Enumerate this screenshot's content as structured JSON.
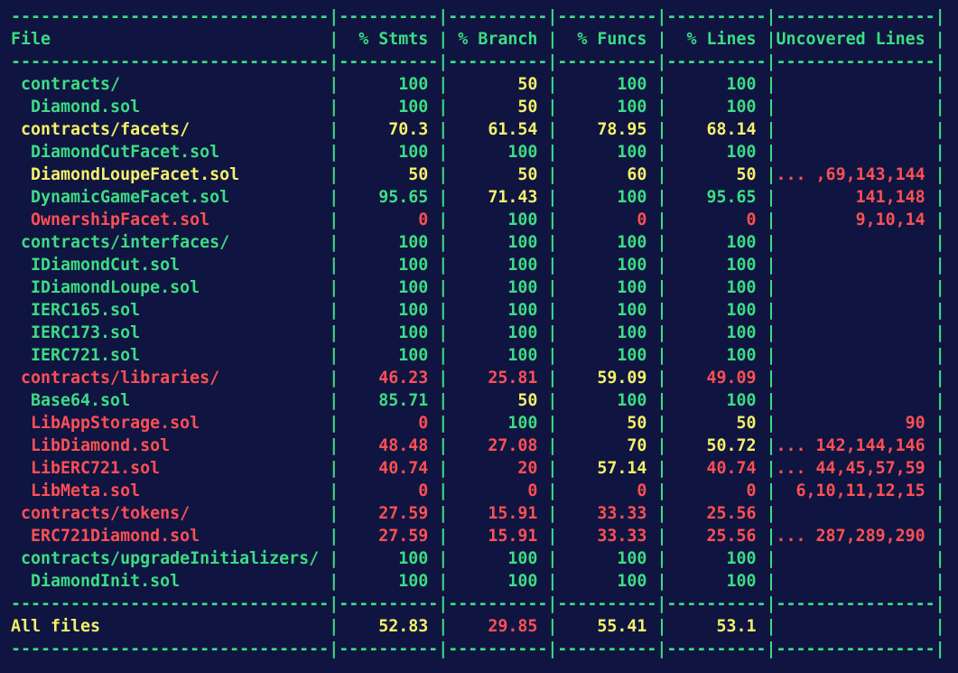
{
  "table": {
    "separator_line": "--------------------------------|----------|----------|----------|----------|----------------|",
    "header": {
      "file": "File",
      "stmts": "% Stmts",
      "branch": "% Branch",
      "funcs": "% Funcs",
      "lines": "% Lines",
      "uncovered": "Uncovered Lines"
    },
    "rows": [
      {
        "file": "contracts/",
        "indent": 1,
        "stmts": "100",
        "branch": "50",
        "funcs": "100",
        "lines": "100",
        "uncovered": "",
        "color": {
          "file": "green",
          "stmts": "green",
          "branch": "yellow",
          "funcs": "green",
          "lines": "green",
          "uncovered": "red"
        }
      },
      {
        "file": "Diamond.sol",
        "indent": 2,
        "stmts": "100",
        "branch": "50",
        "funcs": "100",
        "lines": "100",
        "uncovered": "",
        "color": {
          "file": "green",
          "stmts": "green",
          "branch": "yellow",
          "funcs": "green",
          "lines": "green",
          "uncovered": "red"
        }
      },
      {
        "file": "contracts/facets/",
        "indent": 1,
        "stmts": "70.3",
        "branch": "61.54",
        "funcs": "78.95",
        "lines": "68.14",
        "uncovered": "",
        "color": {
          "file": "yellow",
          "stmts": "yellow",
          "branch": "yellow",
          "funcs": "yellow",
          "lines": "yellow",
          "uncovered": "red"
        }
      },
      {
        "file": "DiamondCutFacet.sol",
        "indent": 2,
        "stmts": "100",
        "branch": "100",
        "funcs": "100",
        "lines": "100",
        "uncovered": "",
        "color": {
          "file": "green",
          "stmts": "green",
          "branch": "green",
          "funcs": "green",
          "lines": "green",
          "uncovered": "red"
        }
      },
      {
        "file": "DiamondLoupeFacet.sol",
        "indent": 2,
        "stmts": "50",
        "branch": "50",
        "funcs": "60",
        "lines": "50",
        "uncovered": "... ,69,143,144",
        "color": {
          "file": "yellow",
          "stmts": "yellow",
          "branch": "yellow",
          "funcs": "yellow",
          "lines": "yellow",
          "uncovered": "red"
        }
      },
      {
        "file": "DynamicGameFacet.sol",
        "indent": 2,
        "stmts": "95.65",
        "branch": "71.43",
        "funcs": "100",
        "lines": "95.65",
        "uncovered": "141,148",
        "color": {
          "file": "green",
          "stmts": "green",
          "branch": "yellow",
          "funcs": "green",
          "lines": "green",
          "uncovered": "red"
        }
      },
      {
        "file": "OwnershipFacet.sol",
        "indent": 2,
        "stmts": "0",
        "branch": "100",
        "funcs": "0",
        "lines": "0",
        "uncovered": "9,10,14",
        "color": {
          "file": "red",
          "stmts": "red",
          "branch": "green",
          "funcs": "red",
          "lines": "red",
          "uncovered": "red"
        }
      },
      {
        "file": "contracts/interfaces/",
        "indent": 1,
        "stmts": "100",
        "branch": "100",
        "funcs": "100",
        "lines": "100",
        "uncovered": "",
        "color": {
          "file": "green",
          "stmts": "green",
          "branch": "green",
          "funcs": "green",
          "lines": "green",
          "uncovered": "red"
        }
      },
      {
        "file": "IDiamondCut.sol",
        "indent": 2,
        "stmts": "100",
        "branch": "100",
        "funcs": "100",
        "lines": "100",
        "uncovered": "",
        "color": {
          "file": "green",
          "stmts": "green",
          "branch": "green",
          "funcs": "green",
          "lines": "green",
          "uncovered": "red"
        }
      },
      {
        "file": "IDiamondLoupe.sol",
        "indent": 2,
        "stmts": "100",
        "branch": "100",
        "funcs": "100",
        "lines": "100",
        "uncovered": "",
        "color": {
          "file": "green",
          "stmts": "green",
          "branch": "green",
          "funcs": "green",
          "lines": "green",
          "uncovered": "red"
        }
      },
      {
        "file": "IERC165.sol",
        "indent": 2,
        "stmts": "100",
        "branch": "100",
        "funcs": "100",
        "lines": "100",
        "uncovered": "",
        "color": {
          "file": "green",
          "stmts": "green",
          "branch": "green",
          "funcs": "green",
          "lines": "green",
          "uncovered": "red"
        }
      },
      {
        "file": "IERC173.sol",
        "indent": 2,
        "stmts": "100",
        "branch": "100",
        "funcs": "100",
        "lines": "100",
        "uncovered": "",
        "color": {
          "file": "green",
          "stmts": "green",
          "branch": "green",
          "funcs": "green",
          "lines": "green",
          "uncovered": "red"
        }
      },
      {
        "file": "IERC721.sol",
        "indent": 2,
        "stmts": "100",
        "branch": "100",
        "funcs": "100",
        "lines": "100",
        "uncovered": "",
        "color": {
          "file": "green",
          "stmts": "green",
          "branch": "green",
          "funcs": "green",
          "lines": "green",
          "uncovered": "red"
        }
      },
      {
        "file": "contracts/libraries/",
        "indent": 1,
        "stmts": "46.23",
        "branch": "25.81",
        "funcs": "59.09",
        "lines": "49.09",
        "uncovered": "",
        "color": {
          "file": "red",
          "stmts": "red",
          "branch": "red",
          "funcs": "yellow",
          "lines": "red",
          "uncovered": "red"
        }
      },
      {
        "file": "Base64.sol",
        "indent": 2,
        "stmts": "85.71",
        "branch": "50",
        "funcs": "100",
        "lines": "100",
        "uncovered": "",
        "color": {
          "file": "green",
          "stmts": "green",
          "branch": "yellow",
          "funcs": "green",
          "lines": "green",
          "uncovered": "red"
        }
      },
      {
        "file": "LibAppStorage.sol",
        "indent": 2,
        "stmts": "0",
        "branch": "100",
        "funcs": "50",
        "lines": "50",
        "uncovered": "90",
        "color": {
          "file": "red",
          "stmts": "red",
          "branch": "green",
          "funcs": "yellow",
          "lines": "yellow",
          "uncovered": "red"
        }
      },
      {
        "file": "LibDiamond.sol",
        "indent": 2,
        "stmts": "48.48",
        "branch": "27.08",
        "funcs": "70",
        "lines": "50.72",
        "uncovered": "... 142,144,146",
        "color": {
          "file": "red",
          "stmts": "red",
          "branch": "red",
          "funcs": "yellow",
          "lines": "yellow",
          "uncovered": "red"
        }
      },
      {
        "file": "LibERC721.sol",
        "indent": 2,
        "stmts": "40.74",
        "branch": "20",
        "funcs": "57.14",
        "lines": "40.74",
        "uncovered": "... 44,45,57,59",
        "color": {
          "file": "red",
          "stmts": "red",
          "branch": "red",
          "funcs": "yellow",
          "lines": "red",
          "uncovered": "red"
        }
      },
      {
        "file": "LibMeta.sol",
        "indent": 2,
        "stmts": "0",
        "branch": "0",
        "funcs": "0",
        "lines": "0",
        "uncovered": "6,10,11,12,15",
        "color": {
          "file": "red",
          "stmts": "red",
          "branch": "red",
          "funcs": "red",
          "lines": "red",
          "uncovered": "red"
        }
      },
      {
        "file": "contracts/tokens/",
        "indent": 1,
        "stmts": "27.59",
        "branch": "15.91",
        "funcs": "33.33",
        "lines": "25.56",
        "uncovered": "",
        "color": {
          "file": "red",
          "stmts": "red",
          "branch": "red",
          "funcs": "red",
          "lines": "red",
          "uncovered": "red"
        }
      },
      {
        "file": "ERC721Diamond.sol",
        "indent": 2,
        "stmts": "27.59",
        "branch": "15.91",
        "funcs": "33.33",
        "lines": "25.56",
        "uncovered": "... 287,289,290",
        "color": {
          "file": "red",
          "stmts": "red",
          "branch": "red",
          "funcs": "red",
          "lines": "red",
          "uncovered": "red"
        }
      },
      {
        "file": "contracts/upgradeInitializers/",
        "indent": 1,
        "stmts": "100",
        "branch": "100",
        "funcs": "100",
        "lines": "100",
        "uncovered": "",
        "color": {
          "file": "green",
          "stmts": "green",
          "branch": "green",
          "funcs": "green",
          "lines": "green",
          "uncovered": "red"
        }
      },
      {
        "file": "DiamondInit.sol",
        "indent": 2,
        "stmts": "100",
        "branch": "100",
        "funcs": "100",
        "lines": "100",
        "uncovered": "",
        "color": {
          "file": "green",
          "stmts": "green",
          "branch": "green",
          "funcs": "green",
          "lines": "green",
          "uncovered": "red"
        }
      }
    ],
    "totals": {
      "file": "All files",
      "stmts": "52.83",
      "branch": "29.85",
      "funcs": "55.41",
      "lines": "53.1",
      "uncovered": "",
      "color": {
        "file": "yellow",
        "stmts": "yellow",
        "branch": "red",
        "funcs": "yellow",
        "lines": "yellow",
        "uncovered": "red"
      }
    }
  },
  "colors": {
    "background": "#0f1540",
    "green": "#3ddc84",
    "yellow": "#f5f06a",
    "red": "#ff4f55"
  }
}
